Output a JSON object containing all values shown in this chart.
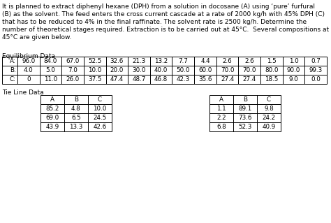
{
  "lines": [
    "It is planned to extract diphenyl hexane (DPH) from a solution in docosane (A) using ‘pure’ furfural",
    "(B) as the solvent. The feed enters the cross current cascade at a rate of 2000 kg/h with 45% DPH (C)",
    "that has to be reduced to 4% in the final raffinate. The solvent rate is 2500 kg/h. Determine the",
    "number of theoretical stages required. Extraction is to be carried out at 45°C.  Several compositions at",
    "45°C are given below."
  ],
  "eq_label": "Equilibrium Data",
  "eq_rows": [
    [
      "A:",
      "96.0",
      "84.0",
      "67.0",
      "52.5",
      "32.6",
      "21.3",
      "13.2",
      "7.7",
      "4.4",
      "2.6",
      "2.6",
      "1.5",
      "1.0",
      "0.7"
    ],
    [
      "B:",
      "4.0",
      "5.0",
      "7.0",
      "10.0",
      "20.0",
      "30.0",
      "40.0",
      "50.0",
      "60.0",
      "70.0",
      "70.0",
      "80.0",
      "90.0",
      "99.3"
    ],
    [
      "C:",
      "0",
      "11.0",
      "26.0",
      "37.5",
      "47.4",
      "48.7",
      "46.8",
      "42.3",
      "35.6",
      "27.4",
      "27.4",
      "18.5",
      "9.0",
      "0.0"
    ]
  ],
  "tie_label": "Tie Line Data",
  "tie_left_headers": [
    "A",
    "B",
    "C"
  ],
  "tie_left_data": [
    [
      "85.2",
      "4.8",
      "10.0"
    ],
    [
      "69.0",
      "6.5",
      "24.5"
    ],
    [
      "43.9",
      "13.3",
      "42.6"
    ]
  ],
  "tie_right_headers": [
    "A",
    "B",
    "C"
  ],
  "tie_right_data": [
    [
      "1.1",
      "89.1",
      "9.8"
    ],
    [
      "2.2",
      "73.6",
      "24.2"
    ],
    [
      "6.8",
      "52.3",
      "40.9"
    ]
  ],
  "bg_color": "#ffffff",
  "text_color": "#000000",
  "para_fontsize": 6.5,
  "label_fontsize": 6.5,
  "table_fontsize": 6.3
}
